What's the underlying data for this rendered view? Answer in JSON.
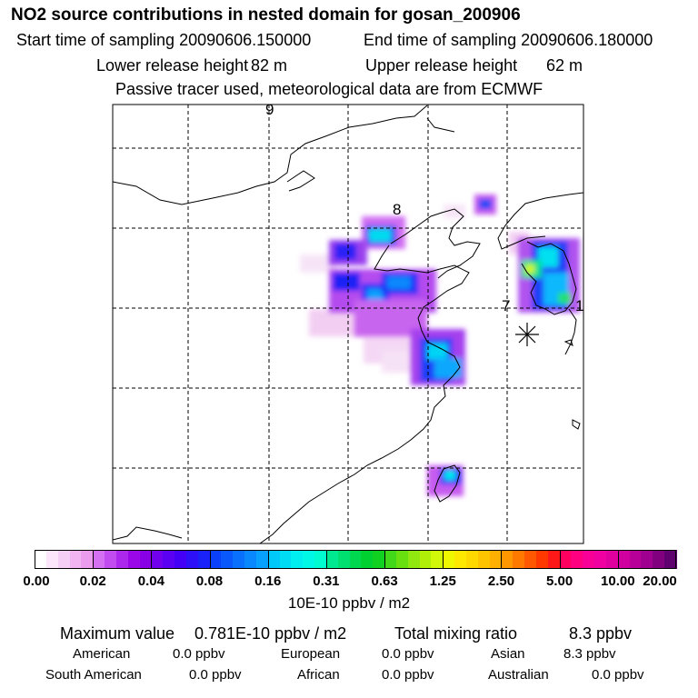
{
  "header": {
    "title": "NO2 source contributions in nested domain for gosan_200906",
    "start_label": "Start time of sampling 20090606.150000",
    "end_label": "End time of sampling 20090606.180000",
    "lower_label": "Lower release height",
    "lower_value": "82 m",
    "upper_label": "Upper release height",
    "upper_value": "62 m",
    "tracer_note": "Passive tracer used, meteorological data are from ECMWF"
  },
  "map": {
    "point_labels": [
      "9",
      "8",
      "7",
      "1"
    ],
    "receptor_marker": "star-asterisk"
  },
  "colorbar": {
    "ticks": [
      "0.00",
      "0.02",
      "0.04",
      "0.08",
      "0.16",
      "0.31",
      "0.63",
      "1.25",
      "2.50",
      "5.00",
      "10.00",
      "20.00"
    ],
    "colors": [
      [
        "#ffffff",
        "#fbe6fb",
        "#f6cff6",
        "#f1b6f1",
        "#ec9cec"
      ],
      [
        "#d670f3",
        "#c24cf0",
        "#ad28ed",
        "#9a08ea",
        "#8a00e6"
      ],
      [
        "#7000ee",
        "#5a00f3",
        "#4400f6",
        "#2e10f8",
        "#1a22fa"
      ],
      [
        "#0a40fa",
        "#0858fb",
        "#0870fc",
        "#0888fc",
        "#08a0fd"
      ],
      [
        "#00c8f8",
        "#00dcf4",
        "#00eef0",
        "#00f8e6",
        "#00fcd0"
      ],
      [
        "#00e890",
        "#00e070",
        "#00d850",
        "#00d030",
        "#10d020"
      ],
      [
        "#40d818",
        "#68e010",
        "#90e810",
        "#b0f008",
        "#d0f808"
      ],
      [
        "#f0f800",
        "#ffe800",
        "#ffd800",
        "#ffc400",
        "#ffb000"
      ],
      [
        "#ff9800",
        "#ff7800",
        "#ff5800",
        "#ff3800",
        "#ff1818"
      ],
      [
        "#ff0060",
        "#ff0080",
        "#f80098",
        "#f000a0",
        "#e000a0"
      ],
      [
        "#d000a0",
        "#b80098",
        "#a00090",
        "#800080",
        "#600070"
      ]
    ],
    "units": "10E-10 ppbv / m2"
  },
  "summary": {
    "max_label": "Maximum value",
    "max_value": "0.781E-10 ppbv / m2",
    "total_label": "Total mixing ratio",
    "total_value": "8.3 ppbv",
    "regions": [
      {
        "name": "American",
        "value": "0.0 ppbv"
      },
      {
        "name": "European",
        "value": "0.0 ppbv"
      },
      {
        "name": "Asian",
        "value": "8.3 ppbv"
      },
      {
        "name": "South American",
        "value": "0.0 ppbv"
      },
      {
        "name": "African",
        "value": "0.0 ppbv"
      },
      {
        "name": "Australian",
        "value": "0.0 ppbv"
      }
    ]
  }
}
